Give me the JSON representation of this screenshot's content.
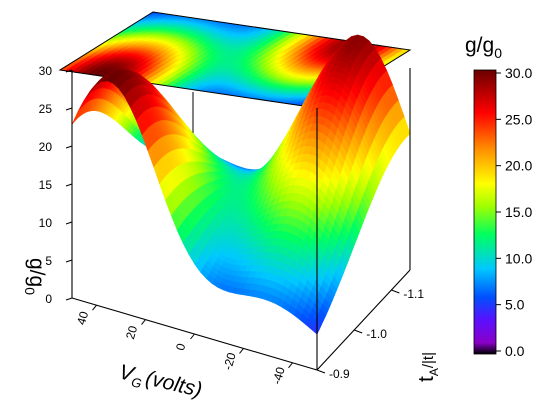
{
  "chart_data": {
    "type": "surface3d",
    "title": "",
    "xlabel": "V",
    "xlabel_sub": "G",
    "xlabel_unit": "(volts)",
    "ylabel": "t",
    "ylabel_sub": "A",
    "ylabel_unit": "/|t|",
    "zlabel": "g/g",
    "zlabel_sub": "0",
    "colorbar_title": "g/g",
    "colorbar_title_sub": "0",
    "x_ticks": [
      "40",
      "20",
      "0",
      "-20",
      "-40"
    ],
    "x_range": [
      50,
      -50
    ],
    "y_ticks": [
      "-0.9",
      "-1.0",
      "-1.1"
    ],
    "y_range": [
      -0.9,
      -1.15
    ],
    "z_ticks": [
      "0",
      "5",
      "10",
      "15",
      "20",
      "25",
      "30"
    ],
    "z_range": [
      0,
      30
    ],
    "colorbar_ticks": [
      "30.0",
      "25.0",
      "20.0",
      "15.0",
      "10.0",
      "5.0",
      "0.0"
    ],
    "colorbar_range": [
      0,
      30
    ],
    "colormap": [
      "#000000",
      "#8a00c8",
      "#5a10ff",
      "#0050ff",
      "#00c8ff",
      "#00ff60",
      "#a0ff00",
      "#ffff00",
      "#ff9000",
      "#ff0000",
      "#6a0000"
    ],
    "top_projection_contour": true,
    "surface_model": {
      "description_values": "two resonance ridges",
      "peaks": [
        {
          "VG_volts": 35,
          "tA_over_t": -0.91,
          "g_over_g0": 30
        },
        {
          "VG_volts": -30,
          "tA_over_t": -1.14,
          "g_over_g0": 29
        }
      ],
      "baseline": 1
    }
  }
}
